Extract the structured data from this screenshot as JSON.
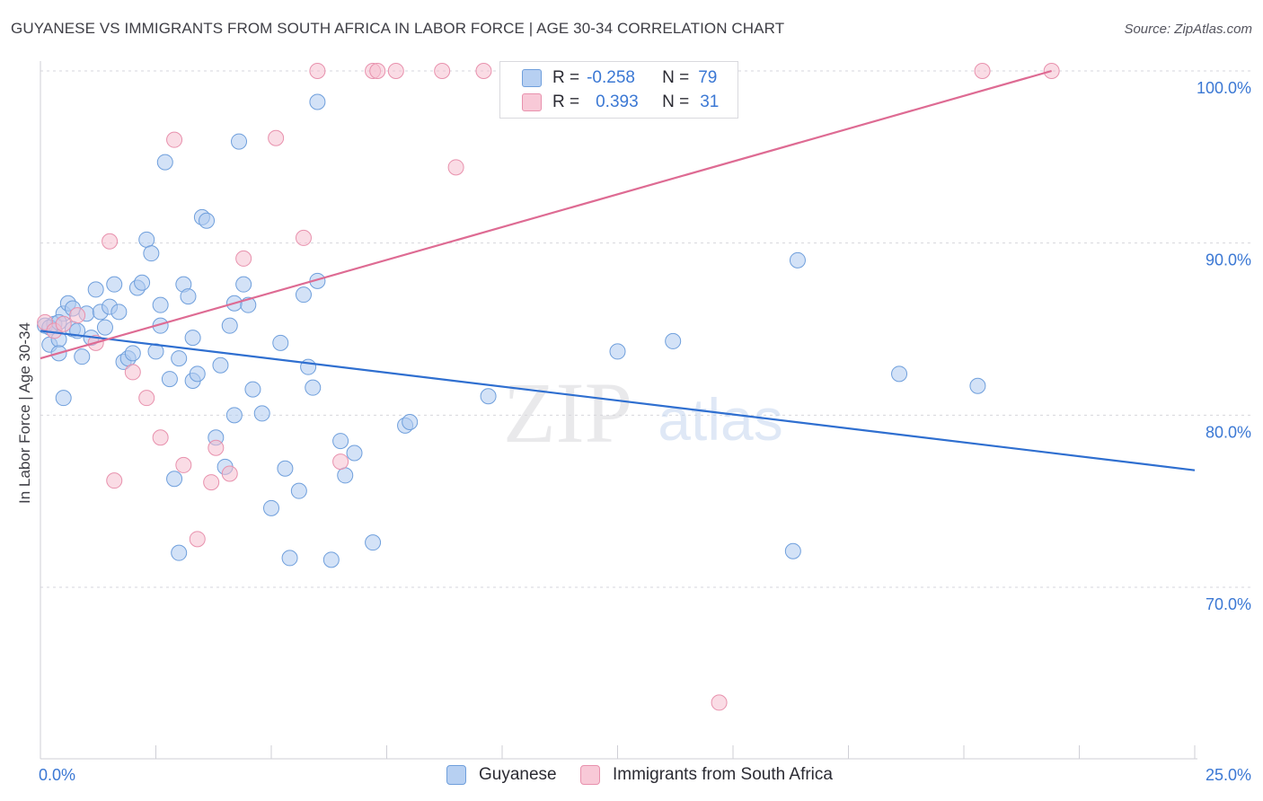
{
  "title": "GUYANESE VS IMMIGRANTS FROM SOUTH AFRICA IN LABOR FORCE | AGE 30-34 CORRELATION CHART",
  "source": "Source: ZipAtlas.com",
  "watermark": {
    "zip": "ZIP",
    "atlas": "atlas"
  },
  "colors": {
    "blue_fill": "#aecbf0",
    "blue_stroke": "#6f9fdc",
    "blue_line": "#2f6fd0",
    "pink_fill": "#f6bfd0",
    "pink_stroke": "#e891ad",
    "pink_line": "#de6b93",
    "tick_label": "#3b78d4",
    "grid": "#d6d6dc"
  },
  "legend": {
    "rows": [
      {
        "r_label": "R =",
        "r_value": "-0.258",
        "n_label": "N =",
        "n_value": "79"
      },
      {
        "r_label": "R =",
        "r_value": "0.393",
        "n_label": "N =",
        "n_value": "31"
      }
    ]
  },
  "bottom_legend": {
    "series1": "Guyanese",
    "series2": "Immigrants from South Africa"
  },
  "chart_data": {
    "type": "scatter",
    "title": "GUYANESE VS IMMIGRANTS FROM SOUTH AFRICA IN LABOR FORCE | AGE 30-34 CORRELATION CHART",
    "xlabel": "",
    "ylabel": "In Labor Force | Age 30-34",
    "xlim": [
      0,
      25
    ],
    "ylim": [
      60,
      101
    ],
    "x_ticks": [
      0,
      25
    ],
    "x_tick_labels": [
      "0.0%",
      "25.0%"
    ],
    "y_ticks": [
      70,
      80,
      90,
      100
    ],
    "y_tick_labels": [
      "70.0%",
      "80.0%",
      "90.0%",
      "100.0%"
    ],
    "grid": true,
    "legend_position": "top-center",
    "series": [
      {
        "name": "Guyanese",
        "color": "#aecbf0",
        "R": -0.258,
        "N": 79,
        "trend": {
          "x": [
            0.0,
            25.0
          ],
          "y": [
            84.9,
            76.8
          ]
        },
        "points": [
          [
            0.1,
            85.2
          ],
          [
            0.2,
            84.1
          ],
          [
            0.3,
            85.3
          ],
          [
            0.4,
            84.4
          ],
          [
            0.4,
            83.6
          ],
          [
            0.5,
            81.0
          ],
          [
            0.5,
            85.9
          ],
          [
            0.6,
            86.5
          ],
          [
            0.7,
            85.0
          ],
          [
            0.7,
            86.2
          ],
          [
            0.8,
            84.9
          ],
          [
            0.9,
            83.4
          ],
          [
            1.0,
            85.9
          ],
          [
            1.1,
            84.5
          ],
          [
            1.2,
            87.3
          ],
          [
            1.3,
            86.0
          ],
          [
            1.4,
            85.1
          ],
          [
            1.5,
            86.3
          ],
          [
            1.6,
            87.6
          ],
          [
            1.7,
            86.0
          ],
          [
            1.8,
            83.1
          ],
          [
            1.9,
            83.3
          ],
          [
            2.0,
            83.6
          ],
          [
            2.1,
            87.4
          ],
          [
            2.2,
            87.7
          ],
          [
            2.3,
            90.2
          ],
          [
            2.4,
            89.4
          ],
          [
            2.5,
            83.7
          ],
          [
            2.6,
            85.2
          ],
          [
            2.6,
            86.4
          ],
          [
            2.7,
            94.7
          ],
          [
            2.8,
            82.1
          ],
          [
            2.9,
            76.3
          ],
          [
            3.0,
            72.0
          ],
          [
            3.0,
            83.3
          ],
          [
            3.1,
            87.6
          ],
          [
            3.2,
            86.9
          ],
          [
            3.3,
            84.5
          ],
          [
            3.3,
            82.0
          ],
          [
            3.4,
            82.4
          ],
          [
            3.5,
            91.5
          ],
          [
            3.6,
            91.3
          ],
          [
            3.8,
            78.7
          ],
          [
            3.9,
            82.9
          ],
          [
            4.0,
            77.0
          ],
          [
            4.1,
            85.2
          ],
          [
            4.2,
            80.0
          ],
          [
            4.3,
            95.9
          ],
          [
            4.2,
            86.5
          ],
          [
            4.4,
            87.6
          ],
          [
            4.5,
            86.4
          ],
          [
            4.6,
            81.5
          ],
          [
            4.8,
            80.1
          ],
          [
            5.0,
            74.6
          ],
          [
            5.2,
            84.2
          ],
          [
            5.3,
            76.9
          ],
          [
            5.4,
            71.7
          ],
          [
            5.6,
            75.6
          ],
          [
            5.7,
            87.0
          ],
          [
            5.8,
            82.8
          ],
          [
            5.9,
            81.6
          ],
          [
            6.0,
            98.2
          ],
          [
            6.0,
            87.8
          ],
          [
            6.3,
            71.6
          ],
          [
            6.5,
            78.5
          ],
          [
            6.6,
            76.5
          ],
          [
            6.8,
            77.8
          ],
          [
            7.2,
            72.6
          ],
          [
            7.9,
            79.4
          ],
          [
            8.0,
            79.6
          ],
          [
            9.7,
            81.1
          ],
          [
            12.5,
            83.7
          ],
          [
            13.7,
            84.3
          ],
          [
            16.3,
            72.1
          ],
          [
            16.4,
            89.0
          ],
          [
            18.6,
            82.4
          ],
          [
            20.3,
            81.7
          ],
          [
            0.2,
            85.1
          ],
          [
            0.4,
            85.4
          ]
        ]
      },
      {
        "name": "Immigrants from South Africa",
        "color": "#f6bfd0",
        "R": 0.393,
        "N": 31,
        "trend": {
          "x": [
            0.0,
            21.9
          ],
          "y": [
            83.3,
            100.0
          ]
        },
        "points": [
          [
            0.1,
            85.4
          ],
          [
            0.3,
            84.9
          ],
          [
            0.5,
            85.3
          ],
          [
            0.8,
            85.8
          ],
          [
            1.2,
            84.2
          ],
          [
            1.5,
            90.1
          ],
          [
            1.6,
            76.2
          ],
          [
            2.0,
            82.5
          ],
          [
            2.3,
            81.0
          ],
          [
            2.6,
            78.7
          ],
          [
            2.9,
            96.0
          ],
          [
            3.1,
            77.1
          ],
          [
            3.4,
            72.8
          ],
          [
            3.7,
            76.1
          ],
          [
            3.8,
            78.1
          ],
          [
            4.1,
            76.6
          ],
          [
            4.4,
            89.1
          ],
          [
            5.1,
            96.1
          ],
          [
            5.7,
            90.3
          ],
          [
            6.0,
            100.0
          ],
          [
            6.5,
            77.3
          ],
          [
            7.2,
            100.0
          ],
          [
            7.3,
            100.0
          ],
          [
            7.7,
            100.0
          ],
          [
            8.7,
            100.0
          ],
          [
            9.0,
            94.4
          ],
          [
            9.6,
            100.0
          ],
          [
            11.0,
            100.0
          ],
          [
            14.7,
            63.3
          ],
          [
            20.4,
            100.0
          ],
          [
            21.9,
            100.0
          ]
        ]
      }
    ]
  }
}
